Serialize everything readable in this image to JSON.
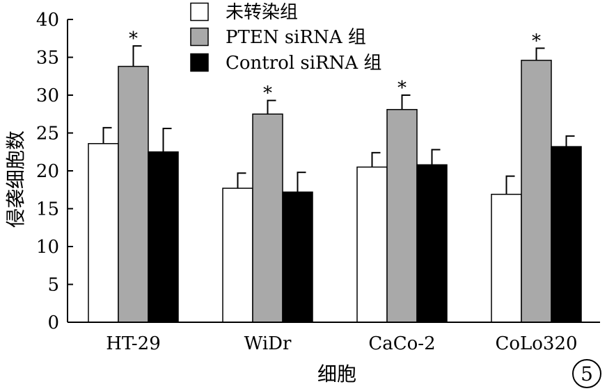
{
  "chart_data": {
    "type": "bar",
    "title": "",
    "xlabel": "细胞",
    "ylabel": "侵袭细胞数",
    "ylim": [
      0,
      40
    ],
    "yticks": [
      0,
      5,
      10,
      15,
      20,
      25,
      30,
      35,
      40
    ],
    "categories": [
      "HT-29",
      "WiDr",
      "CaCo-2",
      "CoLo320"
    ],
    "series": [
      {
        "name": "未转染组",
        "color": "#ffffff",
        "values": [
          23.6,
          17.7,
          20.5,
          16.9
        ],
        "errors": [
          2.1,
          2.0,
          1.9,
          2.4
        ]
      },
      {
        "name": "PTEN siRNA 组",
        "color": "#a9a9a9",
        "values": [
          33.8,
          27.5,
          28.1,
          34.6
        ],
        "errors": [
          2.7,
          1.8,
          1.9,
          1.6
        ]
      },
      {
        "name": "Control siRNA 组",
        "color": "#000000",
        "values": [
          22.5,
          17.2,
          20.8,
          23.2
        ],
        "errors": [
          3.1,
          2.6,
          2.0,
          1.4
        ]
      }
    ],
    "significance_marker": "*",
    "significant": [
      [
        false,
        true,
        false
      ],
      [
        false,
        true,
        false
      ],
      [
        false,
        true,
        false
      ],
      [
        false,
        true,
        false
      ]
    ],
    "legend_position": "top"
  },
  "panel_label": "5"
}
